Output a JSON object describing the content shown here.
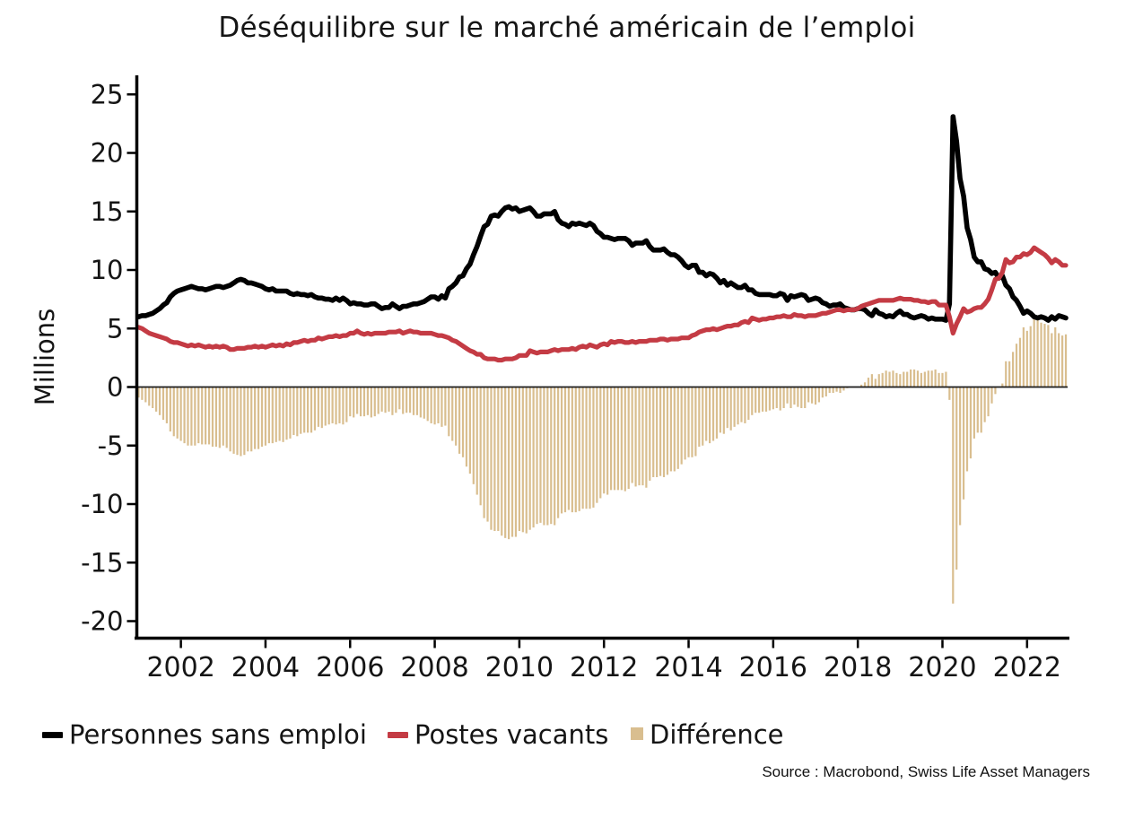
{
  "chart_data": {
    "type": "mixed",
    "title": "Déséquilibre sur le marché américain de l’emploi",
    "ylabel": "Millions",
    "xlabel": "",
    "ylim": [
      -21.5,
      26.5
    ],
    "y_ticks": [
      25,
      20,
      15,
      10,
      5,
      0,
      -5,
      -10,
      -15,
      -20
    ],
    "x_tick_years": [
      2002,
      2004,
      2006,
      2008,
      2010,
      2012,
      2014,
      2016,
      2018,
      2020,
      2022
    ],
    "frequency": "monthly",
    "x_start": "2001-01",
    "x_end": "2022-12",
    "grid": false,
    "legend_position": "bottom-left",
    "zero_line": true,
    "series": [
      {
        "name": "Personnes sans emploi",
        "type": "line",
        "color": "#000000",
        "values": [
          6.0,
          6.1,
          6.1,
          6.2,
          6.3,
          6.5,
          6.7,
          7.0,
          7.2,
          7.7,
          8.0,
          8.2,
          8.3,
          8.4,
          8.5,
          8.6,
          8.5,
          8.4,
          8.4,
          8.3,
          8.4,
          8.5,
          8.6,
          8.6,
          8.5,
          8.6,
          8.7,
          8.9,
          9.1,
          9.2,
          9.1,
          8.9,
          8.9,
          8.8,
          8.7,
          8.6,
          8.4,
          8.3,
          8.4,
          8.2,
          8.2,
          8.2,
          8.2,
          8.0,
          7.9,
          8.0,
          7.9,
          7.9,
          7.8,
          7.9,
          7.7,
          7.6,
          7.6,
          7.5,
          7.5,
          7.4,
          7.6,
          7.4,
          7.6,
          7.4,
          7.1,
          7.2,
          7.1,
          7.1,
          7.0,
          7.0,
          7.1,
          7.1,
          6.9,
          6.7,
          6.8,
          6.8,
          7.1,
          6.9,
          6.7,
          6.9,
          6.9,
          7.0,
          7.1,
          7.1,
          7.2,
          7.3,
          7.5,
          7.7,
          7.7,
          7.5,
          7.8,
          7.6,
          8.4,
          8.6,
          8.9,
          9.4,
          9.5,
          10.1,
          10.5,
          11.3,
          12.0,
          12.9,
          13.7,
          13.9,
          14.6,
          14.7,
          14.6,
          15.0,
          15.3,
          15.4,
          15.2,
          15.3,
          15.0,
          15.1,
          15.2,
          15.3,
          15.0,
          14.6,
          14.6,
          14.8,
          14.8,
          14.8,
          15.0,
          14.3,
          14.0,
          13.9,
          13.7,
          14.0,
          13.9,
          14.0,
          13.9,
          13.8,
          14.0,
          13.8,
          13.3,
          13.1,
          12.8,
          12.8,
          12.7,
          12.6,
          12.7,
          12.7,
          12.7,
          12.5,
          12.1,
          12.3,
          12.3,
          12.3,
          12.5,
          12.0,
          11.7,
          11.7,
          11.7,
          11.8,
          11.5,
          11.3,
          11.3,
          11.1,
          10.8,
          10.4,
          10.2,
          10.4,
          10.4,
          9.8,
          9.8,
          9.5,
          9.7,
          9.6,
          9.3,
          8.9,
          9.1,
          8.7,
          8.9,
          8.7,
          8.5,
          8.5,
          8.7,
          8.3,
          8.3,
          8.0,
          7.9,
          7.9,
          7.9,
          7.9,
          7.8,
          7.8,
          8.0,
          7.9,
          7.4,
          7.8,
          7.7,
          7.8,
          7.9,
          7.8,
          7.4,
          7.5,
          7.6,
          7.5,
          7.2,
          7.1,
          6.9,
          7.0,
          7.0,
          7.1,
          6.8,
          6.7,
          6.6,
          6.6,
          6.7,
          6.7,
          6.6,
          6.3,
          6.1,
          6.6,
          6.3,
          6.2,
          6.0,
          6.1,
          6.0,
          6.3,
          6.5,
          6.2,
          6.2,
          6.0,
          5.9,
          6.0,
          6.1,
          6.0,
          5.8,
          5.9,
          5.8,
          5.8,
          5.8,
          5.7,
          7.1,
          23.1,
          21.0,
          17.8,
          16.3,
          13.6,
          12.6,
          11.1,
          10.7,
          10.7,
          10.1,
          10.0,
          9.7,
          9.8,
          9.3,
          9.5,
          8.7,
          8.4,
          7.7,
          7.4,
          6.9,
          6.3,
          6.5,
          6.3,
          6.0,
          5.9,
          6.0,
          5.9,
          5.7,
          6.0,
          5.8,
          6.1,
          6.0,
          5.9
        ]
      },
      {
        "name": "Postes vacants",
        "type": "line",
        "color": "#C43B44",
        "values": [
          5.1,
          5.0,
          4.8,
          4.6,
          4.5,
          4.4,
          4.3,
          4.2,
          4.1,
          3.9,
          3.8,
          3.8,
          3.7,
          3.6,
          3.5,
          3.6,
          3.5,
          3.6,
          3.5,
          3.4,
          3.5,
          3.4,
          3.5,
          3.4,
          3.5,
          3.4,
          3.2,
          3.2,
          3.3,
          3.3,
          3.3,
          3.4,
          3.4,
          3.5,
          3.4,
          3.5,
          3.4,
          3.5,
          3.6,
          3.5,
          3.6,
          3.5,
          3.7,
          3.6,
          3.8,
          3.8,
          3.9,
          4.0,
          3.9,
          4.0,
          4.0,
          4.2,
          4.1,
          4.2,
          4.3,
          4.3,
          4.4,
          4.3,
          4.4,
          4.4,
          4.6,
          4.6,
          4.8,
          4.6,
          4.5,
          4.6,
          4.5,
          4.6,
          4.6,
          4.6,
          4.6,
          4.7,
          4.7,
          4.7,
          4.8,
          4.6,
          4.7,
          4.8,
          4.7,
          4.7,
          4.6,
          4.6,
          4.6,
          4.6,
          4.5,
          4.4,
          4.4,
          4.3,
          4.2,
          4.0,
          3.9,
          3.7,
          3.5,
          3.3,
          3.1,
          3.0,
          2.8,
          2.8,
          2.5,
          2.4,
          2.4,
          2.4,
          2.3,
          2.3,
          2.4,
          2.4,
          2.4,
          2.5,
          2.7,
          2.7,
          2.7,
          3.1,
          3.0,
          2.9,
          3.0,
          3.0,
          3.0,
          3.1,
          3.2,
          3.1,
          3.2,
          3.2,
          3.2,
          3.3,
          3.2,
          3.4,
          3.5,
          3.4,
          3.6,
          3.5,
          3.4,
          3.6,
          3.7,
          3.6,
          3.9,
          3.8,
          3.9,
          3.9,
          3.8,
          3.8,
          3.9,
          3.8,
          3.9,
          3.9,
          3.9,
          4.0,
          4.0,
          4.0,
          4.1,
          4.1,
          4.0,
          4.1,
          4.1,
          4.1,
          4.2,
          4.2,
          4.2,
          4.4,
          4.5,
          4.7,
          4.8,
          4.9,
          4.9,
          5.0,
          4.9,
          5.0,
          5.1,
          5.2,
          5.2,
          5.3,
          5.3,
          5.5,
          5.6,
          5.5,
          5.9,
          5.8,
          5.7,
          5.8,
          5.8,
          5.9,
          5.9,
          6.0,
          6.0,
          6.1,
          6.0,
          6.0,
          6.2,
          6.1,
          6.1,
          6.0,
          6.1,
          6.1,
          6.1,
          6.2,
          6.3,
          6.3,
          6.4,
          6.5,
          6.6,
          6.6,
          6.5,
          6.6,
          6.6,
          6.6,
          6.7,
          6.9,
          7.0,
          7.1,
          7.2,
          7.3,
          7.4,
          7.4,
          7.4,
          7.4,
          7.4,
          7.5,
          7.6,
          7.5,
          7.5,
          7.5,
          7.4,
          7.4,
          7.3,
          7.3,
          7.2,
          7.3,
          7.3,
          7.0,
          7.0,
          7.0,
          6.0,
          4.6,
          5.4,
          6.0,
          6.7,
          6.4,
          6.5,
          6.7,
          6.8,
          6.8,
          7.1,
          7.5,
          8.3,
          9.2,
          9.3,
          9.8,
          10.9,
          10.6,
          10.7,
          11.1,
          11.1,
          11.4,
          11.3,
          11.5,
          11.9,
          11.7,
          11.5,
          11.3,
          11.0,
          10.6,
          10.9,
          10.7,
          10.4,
          10.4
        ]
      },
      {
        "name": "Différence",
        "type": "bar",
        "color": "#D9BE8F",
        "derivation": "Postes vacants minus Personnes sans emploi",
        "values": [
          -0.9,
          -1.1,
          -1.3,
          -1.6,
          -1.8,
          -2.1,
          -2.4,
          -2.8,
          -3.1,
          -3.8,
          -4.2,
          -4.4,
          -4.6,
          -4.8,
          -5.0,
          -5.0,
          -5.0,
          -4.8,
          -4.9,
          -4.9,
          -4.9,
          -5.1,
          -5.1,
          -5.2,
          -5.0,
          -5.2,
          -5.5,
          -5.7,
          -5.8,
          -5.9,
          -5.8,
          -5.5,
          -5.5,
          -5.3,
          -5.3,
          -5.1,
          -5.0,
          -4.8,
          -4.8,
          -4.7,
          -4.6,
          -4.7,
          -4.5,
          -4.4,
          -4.1,
          -4.2,
          -4.0,
          -3.9,
          -3.9,
          -3.9,
          -3.7,
          -3.4,
          -3.5,
          -3.3,
          -3.2,
          -3.1,
          -3.2,
          -3.1,
          -3.2,
          -3.0,
          -2.5,
          -2.6,
          -2.3,
          -2.5,
          -2.5,
          -2.4,
          -2.6,
          -2.5,
          -2.3,
          -2.1,
          -2.2,
          -2.1,
          -2.4,
          -2.2,
          -1.9,
          -2.3,
          -2.2,
          -2.2,
          -2.4,
          -2.4,
          -2.6,
          -2.7,
          -2.9,
          -3.1,
          -3.2,
          -3.1,
          -3.4,
          -3.3,
          -4.2,
          -4.6,
          -5.0,
          -5.7,
          -6.0,
          -6.8,
          -7.4,
          -8.3,
          -9.2,
          -10.1,
          -11.2,
          -11.5,
          -12.2,
          -12.3,
          -12.3,
          -12.7,
          -12.9,
          -13.0,
          -12.8,
          -12.8,
          -12.3,
          -12.4,
          -12.5,
          -12.2,
          -12.0,
          -11.7,
          -11.6,
          -11.8,
          -11.8,
          -11.7,
          -11.8,
          -11.2,
          -10.8,
          -10.7,
          -10.5,
          -10.7,
          -10.7,
          -10.6,
          -10.4,
          -10.4,
          -10.4,
          -10.3,
          -9.9,
          -9.5,
          -9.1,
          -9.2,
          -8.8,
          -8.8,
          -8.8,
          -8.8,
          -8.9,
          -8.7,
          -8.2,
          -8.5,
          -8.4,
          -8.4,
          -8.6,
          -8.0,
          -7.7,
          -7.7,
          -7.6,
          -7.7,
          -7.5,
          -7.2,
          -7.2,
          -7.0,
          -6.6,
          -6.2,
          -6.0,
          -6.0,
          -5.9,
          -5.1,
          -5.0,
          -4.6,
          -4.8,
          -4.6,
          -4.4,
          -3.9,
          -4.0,
          -3.5,
          -3.7,
          -3.4,
          -3.2,
          -3.0,
          -3.1,
          -2.8,
          -2.4,
          -2.2,
          -2.2,
          -2.1,
          -2.1,
          -2.0,
          -1.9,
          -1.8,
          -2.0,
          -1.8,
          -1.4,
          -1.8,
          -1.5,
          -1.7,
          -1.8,
          -1.8,
          -1.3,
          -1.4,
          -1.5,
          -1.3,
          -0.9,
          -0.8,
          -0.5,
          -0.5,
          -0.4,
          -0.5,
          -0.3,
          -0.1,
          0.0,
          0.0,
          0.0,
          0.2,
          0.4,
          0.8,
          1.1,
          0.7,
          1.1,
          1.2,
          1.4,
          1.3,
          1.4,
          1.2,
          1.1,
          1.3,
          1.3,
          1.5,
          1.5,
          1.4,
          1.2,
          1.3,
          1.4,
          1.4,
          1.5,
          1.2,
          1.2,
          1.3,
          -1.1,
          -18.5,
          -15.6,
          -11.8,
          -9.6,
          -7.2,
          -6.1,
          -4.4,
          -3.9,
          -3.9,
          -3.0,
          -2.5,
          -1.4,
          -0.6,
          0.0,
          0.3,
          2.2,
          2.2,
          3.0,
          3.7,
          4.2,
          5.1,
          4.8,
          5.2,
          5.9,
          5.8,
          5.5,
          5.4,
          5.3,
          4.6,
          5.1,
          4.6,
          4.4,
          4.5
        ]
      }
    ]
  },
  "y_axis": {
    "label": "Millions"
  },
  "legend": {
    "items": [
      {
        "label": "Personnes sans emploi",
        "marker": "line",
        "color": "#000000"
      },
      {
        "label": "Postes vacants",
        "marker": "line",
        "color": "#C43B44"
      },
      {
        "label": "Différence",
        "marker": "square",
        "color": "#D9BE8F"
      }
    ]
  },
  "source": "Source : Macrobond, Swiss Life Asset Managers"
}
